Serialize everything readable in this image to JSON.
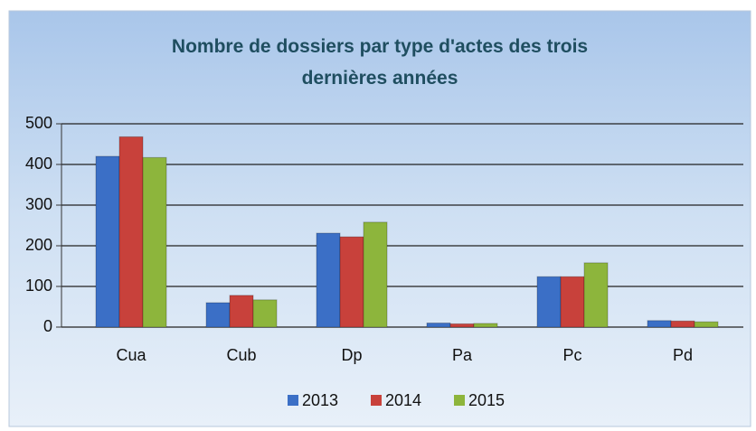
{
  "chart_data": {
    "type": "bar",
    "title": "Nombre de dossiers par type d'actes des trois dernières années",
    "categories": [
      "Cua",
      "Cub",
      "Dp",
      "Pa",
      "Pc",
      "Pd"
    ],
    "series": [
      {
        "name": "2013",
        "color": "#3b6fc6",
        "values": [
          420,
          60,
          231,
          10,
          124,
          16
        ]
      },
      {
        "name": "2014",
        "color": "#c8413b",
        "values": [
          468,
          78,
          222,
          8,
          124,
          15
        ]
      },
      {
        "name": "2015",
        "color": "#8db53c",
        "values": [
          417,
          67,
          258,
          9,
          158,
          13
        ]
      }
    ],
    "ylim": [
      0,
      500
    ],
    "yticks": [
      0,
      100,
      200,
      300,
      400,
      500
    ],
    "grid": true,
    "legend": "bottom"
  }
}
